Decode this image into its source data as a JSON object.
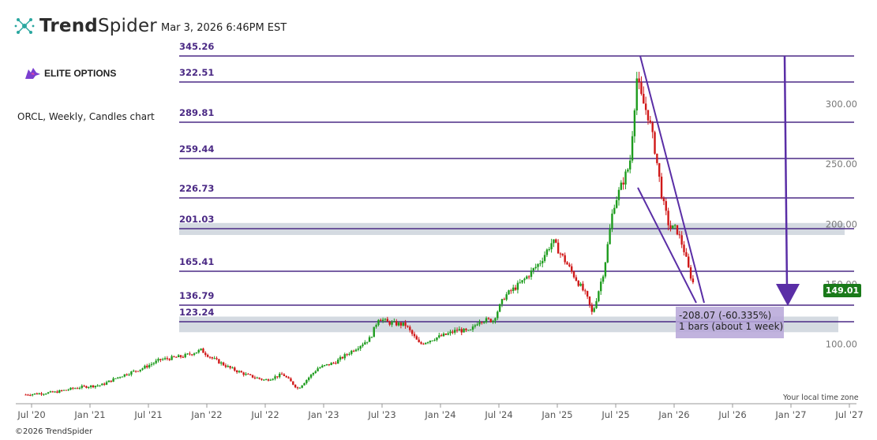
{
  "header": {
    "brand_prefix": "Trend",
    "brand_suffix": "Spider",
    "timestamp": "Mar 3, 2026 6:46PM EST",
    "partner": "ELITE OPTIONS",
    "chart_description": "ORCL, Weekly, Candles chart",
    "copyright": "©2026 TrendSpider",
    "timezone_note": "Your local time zone"
  },
  "colors": {
    "up": "#1e9c1e",
    "down": "#d01818",
    "fib_line": "#4b2a85",
    "zone": "#cfd6de",
    "arrow": "#5a2ea6",
    "measure_box": "#b6a6d8",
    "price_badge": "#1a7a1a"
  },
  "chart_data": {
    "type": "candlestick",
    "symbol": "ORCL",
    "interval": "Weekly",
    "ylim": [
      20,
      355
    ],
    "y_ticks": [
      "100.00",
      "150.00",
      "200.00",
      "250.00",
      "300.00"
    ],
    "x_ticks": [
      "Jul '20",
      "Jan '21",
      "Jul '21",
      "Jan '22",
      "Jul '22",
      "Jan '23",
      "Jul '23",
      "Jan '24",
      "Jul '24",
      "Jan '25",
      "Jul '25",
      "Jan '26",
      "Jul '26",
      "Jan '27",
      "Jul '27"
    ],
    "fib_levels": [
      345.26,
      322.51,
      289.81,
      259.44,
      226.73,
      201.03,
      165.41,
      136.79,
      123.24
    ],
    "zones": [
      [
        191,
        201
      ],
      [
        110,
        123
      ]
    ],
    "current_price": 149.01,
    "measurement": {
      "change": "-208.07 (-60.335%)",
      "bars": "1 bars (about 1 week)"
    },
    "price_path": [
      {
        "t": 2020.45,
        "p": 58
      },
      {
        "t": 2020.7,
        "p": 60
      },
      {
        "t": 2020.9,
        "p": 64
      },
      {
        "t": 2021.1,
        "p": 66
      },
      {
        "t": 2021.25,
        "p": 73
      },
      {
        "t": 2021.45,
        "p": 80
      },
      {
        "t": 2021.6,
        "p": 87
      },
      {
        "t": 2021.8,
        "p": 90
      },
      {
        "t": 2021.95,
        "p": 95
      },
      {
        "t": 2022.05,
        "p": 88
      },
      {
        "t": 2022.2,
        "p": 80
      },
      {
        "t": 2022.35,
        "p": 74
      },
      {
        "t": 2022.5,
        "p": 70
      },
      {
        "t": 2022.65,
        "p": 75
      },
      {
        "t": 2022.78,
        "p": 63
      },
      {
        "t": 2022.95,
        "p": 80
      },
      {
        "t": 2023.1,
        "p": 85
      },
      {
        "t": 2023.25,
        "p": 95
      },
      {
        "t": 2023.4,
        "p": 105
      },
      {
        "t": 2023.47,
        "p": 122
      },
      {
        "t": 2023.55,
        "p": 118
      },
      {
        "t": 2023.7,
        "p": 116
      },
      {
        "t": 2023.82,
        "p": 100
      },
      {
        "t": 2023.95,
        "p": 105
      },
      {
        "t": 2024.05,
        "p": 108
      },
      {
        "t": 2024.15,
        "p": 112
      },
      {
        "t": 2024.25,
        "p": 110
      },
      {
        "t": 2024.33,
        "p": 120
      },
      {
        "t": 2024.45,
        "p": 120
      },
      {
        "t": 2024.55,
        "p": 140
      },
      {
        "t": 2024.7,
        "p": 152
      },
      {
        "t": 2024.85,
        "p": 168
      },
      {
        "t": 2024.96,
        "p": 186
      },
      {
        "t": 2025.05,
        "p": 172
      },
      {
        "t": 2025.15,
        "p": 156
      },
      {
        "t": 2025.25,
        "p": 140
      },
      {
        "t": 2025.3,
        "p": 125
      },
      {
        "t": 2025.4,
        "p": 162
      },
      {
        "t": 2025.48,
        "p": 215
      },
      {
        "t": 2025.56,
        "p": 235
      },
      {
        "t": 2025.62,
        "p": 250
      },
      {
        "t": 2025.68,
        "p": 322
      },
      {
        "t": 2025.72,
        "p": 305
      },
      {
        "t": 2025.78,
        "p": 290
      },
      {
        "t": 2025.84,
        "p": 260
      },
      {
        "t": 2025.9,
        "p": 220
      },
      {
        "t": 2025.96,
        "p": 197
      },
      {
        "t": 2026.02,
        "p": 196
      },
      {
        "t": 2026.08,
        "p": 180
      },
      {
        "t": 2026.13,
        "p": 160
      },
      {
        "t": 2026.17,
        "p": 149
      }
    ]
  }
}
